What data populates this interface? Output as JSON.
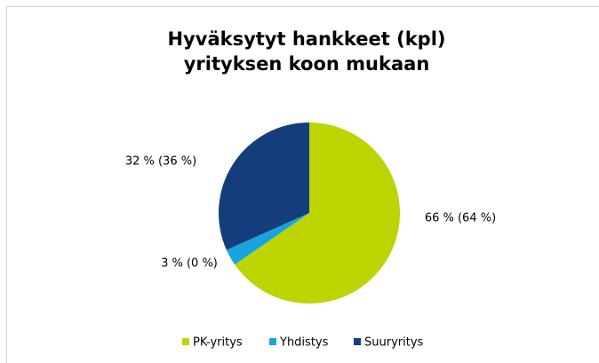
{
  "chart_data": {
    "type": "pie",
    "title_lines": [
      "Hyväksytyt hankkeet (kpl)",
      "yrityksen koon mukaan"
    ],
    "categories": [
      "PK-yritys",
      "Yhdistys",
      "Suuryritys"
    ],
    "values": [
      66,
      3,
      32
    ],
    "value_labels": [
      "66 % (64 %)",
      "3 % (0 %)",
      "32 % (36 %)"
    ],
    "colors": [
      "#bcd400",
      "#1aa3df",
      "#133e7b"
    ],
    "legend": "bottom"
  }
}
